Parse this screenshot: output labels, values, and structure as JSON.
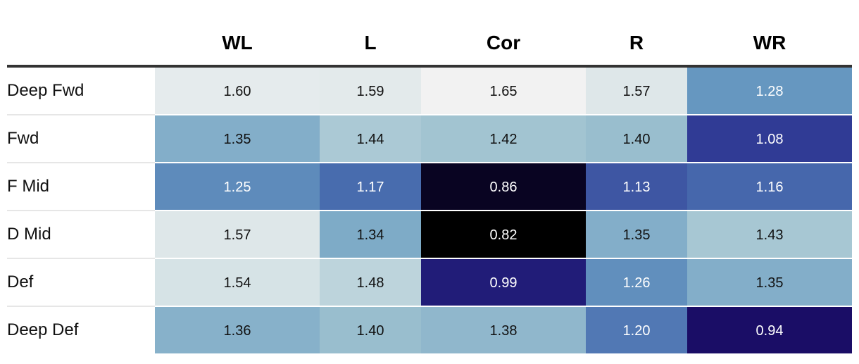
{
  "chart_data": {
    "type": "heatmap",
    "columns": [
      "WL",
      "L",
      "Cor",
      "R",
      "WR"
    ],
    "rows": [
      "Deep Fwd",
      "Fwd",
      "F Mid",
      "D Mid",
      "Def",
      "Deep Def"
    ],
    "values": [
      [
        1.6,
        1.59,
        1.65,
        1.57,
        1.28
      ],
      [
        1.35,
        1.44,
        1.42,
        1.4,
        1.08
      ],
      [
        1.25,
        1.17,
        0.86,
        1.13,
        1.16
      ],
      [
        1.57,
        1.34,
        0.82,
        1.35,
        1.43
      ],
      [
        1.54,
        1.48,
        0.99,
        1.26,
        1.35
      ],
      [
        1.36,
        1.4,
        1.38,
        1.2,
        0.94
      ]
    ],
    "value_labels": [
      [
        "1.60",
        "1.59",
        "1.65",
        "1.57",
        "1.28"
      ],
      [
        "1.35",
        "1.44",
        "1.42",
        "1.40",
        "1.08"
      ],
      [
        "1.25",
        "1.17",
        "0.86",
        "1.13",
        "1.16"
      ],
      [
        "1.57",
        "1.34",
        "0.82",
        "1.35",
        "1.43"
      ],
      [
        "1.54",
        "1.48",
        "0.99",
        "1.26",
        "1.35"
      ],
      [
        "1.36",
        "1.40",
        "1.38",
        "1.20",
        "0.94"
      ]
    ],
    "color_range": [
      0.82,
      1.65
    ],
    "color_scale": [
      "#000000",
      "#1a0d66",
      "#2a2f8f",
      "#4a6fb0",
      "#6a9cc2",
      "#9fc2d0",
      "#d4e2e5",
      "#f2f2f2"
    ],
    "grid": false,
    "legend": "none"
  }
}
